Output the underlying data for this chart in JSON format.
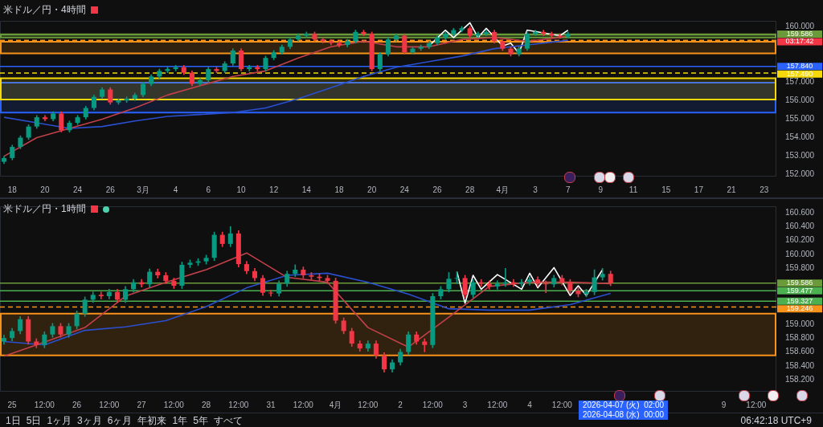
{
  "chart_data": [
    {
      "type": "candlestick",
      "title": "米ドル／円・4時間",
      "categories": [
        null,
        "18",
        null,
        null,
        null,
        "20",
        null,
        null,
        null,
        "24",
        null,
        null,
        null,
        "26",
        null,
        null,
        null,
        "3月",
        null,
        null,
        null,
        "4",
        null,
        null,
        null,
        "6",
        null,
        null,
        null,
        "10",
        null,
        null,
        null,
        "12",
        null,
        null,
        null,
        "14",
        null,
        null,
        null,
        "18",
        null,
        null,
        null,
        "20",
        null,
        null,
        null,
        "24",
        null,
        null,
        null,
        "26",
        null,
        null,
        null,
        "28",
        null,
        null,
        null,
        "4月",
        null,
        null,
        null,
        "3",
        null,
        null,
        null,
        "7",
        null,
        null,
        null,
        "9",
        null,
        null,
        null,
        "11",
        null,
        null,
        null,
        "15",
        null,
        null,
        null,
        "17",
        null,
        null,
        null,
        "21",
        null,
        null,
        null,
        "23",
        null
      ],
      "ohlc": [
        [
          152.7,
          153.0,
          152.6,
          152.9
        ],
        [
          152.9,
          153.6,
          152.8,
          153.5
        ],
        [
          153.5,
          154.1,
          153.4,
          154.0
        ],
        [
          154.0,
          154.7,
          153.9,
          154.6
        ],
        [
          154.6,
          155.2,
          154.5,
          155.1
        ],
        [
          155.1,
          155.2,
          154.9,
          155.0
        ],
        [
          155.0,
          155.4,
          154.9,
          155.3
        ],
        [
          155.3,
          155.4,
          154.3,
          154.4
        ],
        [
          154.4,
          154.9,
          154.3,
          154.8
        ],
        [
          154.8,
          155.2,
          154.7,
          155.1
        ],
        [
          155.1,
          155.7,
          155.0,
          155.6
        ],
        [
          155.6,
          156.3,
          155.5,
          156.2
        ],
        [
          156.2,
          156.7,
          156.1,
          156.6
        ],
        [
          156.6,
          156.7,
          155.8,
          155.9
        ],
        [
          155.9,
          156.1,
          155.8,
          156.0
        ],
        [
          156.0,
          156.2,
          155.9,
          156.1
        ],
        [
          156.1,
          156.4,
          156.0,
          156.3
        ],
        [
          156.3,
          157.0,
          156.2,
          156.9
        ],
        [
          156.9,
          157.4,
          156.8,
          157.3
        ],
        [
          157.3,
          157.7,
          157.2,
          157.6
        ],
        [
          157.6,
          157.8,
          157.5,
          157.7
        ],
        [
          157.7,
          157.9,
          157.6,
          157.8
        ],
        [
          157.8,
          157.9,
          157.4,
          157.5
        ],
        [
          157.5,
          157.6,
          156.8,
          156.9
        ],
        [
          156.9,
          157.2,
          156.8,
          157.1
        ],
        [
          157.1,
          157.8,
          157.0,
          157.7
        ],
        [
          157.7,
          157.8,
          157.5,
          157.6
        ],
        [
          157.6,
          158.1,
          157.5,
          158.0
        ],
        [
          158.0,
          158.8,
          157.9,
          158.7
        ],
        [
          158.7,
          158.8,
          157.6,
          157.7
        ],
        [
          157.7,
          157.9,
          157.6,
          157.8
        ],
        [
          157.8,
          157.9,
          157.6,
          157.7
        ],
        [
          157.7,
          158.4,
          157.6,
          158.3
        ],
        [
          158.3,
          158.7,
          158.2,
          158.6
        ],
        [
          158.6,
          159.0,
          158.5,
          158.9
        ],
        [
          158.9,
          159.4,
          158.8,
          159.3
        ],
        [
          159.3,
          159.6,
          159.2,
          159.5
        ],
        [
          159.5,
          159.7,
          159.4,
          159.6
        ],
        [
          159.6,
          159.7,
          159.2,
          159.3
        ],
        [
          159.3,
          159.4,
          159.1,
          159.2
        ],
        [
          159.2,
          159.3,
          159.0,
          159.1
        ],
        [
          159.1,
          159.2,
          158.9,
          159.0
        ],
        [
          159.0,
          159.3,
          158.9,
          159.2
        ],
        [
          159.2,
          159.8,
          159.1,
          159.7
        ],
        [
          159.7,
          159.8,
          159.5,
          159.6
        ],
        [
          159.6,
          159.7,
          157.6,
          157.7
        ],
        [
          157.7,
          158.6,
          157.6,
          158.5
        ],
        [
          158.5,
          159.4,
          158.4,
          159.3
        ],
        [
          159.3,
          159.6,
          159.2,
          159.5
        ],
        [
          159.5,
          159.6,
          158.5,
          158.6
        ],
        [
          158.6,
          158.9,
          158.5,
          158.8
        ],
        [
          158.8,
          159.0,
          158.7,
          158.9
        ],
        [
          158.9,
          159.2,
          158.8,
          159.1
        ],
        [
          159.1,
          159.5,
          159.0,
          159.4
        ],
        [
          159.4,
          159.7,
          159.3,
          159.6
        ],
        [
          159.6,
          159.9,
          159.5,
          159.8
        ],
        [
          159.8,
          160.0,
          159.7,
          159.9
        ],
        [
          159.9,
          160.0,
          159.4,
          159.5
        ],
        [
          159.5,
          159.7,
          159.4,
          159.6
        ],
        [
          159.6,
          159.8,
          159.5,
          159.7
        ],
        [
          159.7,
          159.8,
          159.1,
          159.2
        ],
        [
          159.2,
          159.3,
          158.7,
          158.8
        ],
        [
          158.8,
          158.9,
          158.4,
          158.5
        ],
        [
          158.5,
          158.9,
          158.4,
          158.8
        ],
        [
          158.8,
          159.7,
          158.7,
          159.6
        ],
        [
          159.6,
          159.8,
          159.5,
          159.7
        ],
        [
          159.7,
          159.8,
          159.5,
          159.6
        ],
        [
          159.6,
          159.7,
          159.4,
          159.5
        ],
        [
          159.5,
          159.6,
          159.35,
          159.45
        ],
        [
          159.45,
          159.7,
          159.4,
          159.586
        ],
        null,
        null,
        null,
        null,
        null,
        null,
        null,
        null,
        null,
        null,
        null,
        null,
        null,
        null,
        null,
        null,
        null,
        null,
        null,
        null,
        null,
        null,
        null,
        null,
        null
      ],
      "series": [
        {
          "type": "line",
          "color": "#c2404a",
          "values": [
            153.0,
            null,
            null,
            null,
            154.0,
            null,
            null,
            null,
            154.5,
            null,
            null,
            null,
            155.0,
            null,
            null,
            null,
            155.6,
            null,
            null,
            null,
            156.3,
            null,
            null,
            null,
            156.8,
            null,
            null,
            null,
            157.3,
            null,
            null,
            null,
            157.6,
            null,
            null,
            null,
            158.3,
            null,
            null,
            null,
            158.9,
            null,
            null,
            null,
            159.2,
            null,
            null,
            null,
            158.9,
            null,
            null,
            null,
            158.9,
            null,
            null,
            null,
            159.3,
            null,
            null,
            null,
            159.4,
            null,
            null,
            null,
            159.2,
            null,
            null,
            null,
            159.4,
            159.5,
            null,
            null,
            null,
            null,
            null,
            null,
            null,
            null,
            null,
            null,
            null,
            null,
            null,
            null,
            null,
            null,
            null,
            null,
            null,
            null,
            null,
            null,
            null,
            null,
            null
          ]
        },
        {
          "type": "line",
          "color": "#2a4fd0",
          "values": [
            155.1,
            null,
            null,
            null,
            154.8,
            null,
            null,
            null,
            154.5,
            null,
            null,
            null,
            154.6,
            null,
            null,
            null,
            154.9,
            null,
            null,
            null,
            155.15,
            null,
            null,
            null,
            155.25,
            null,
            null,
            null,
            155.35,
            null,
            null,
            null,
            155.6,
            null,
            null,
            null,
            156.1,
            null,
            null,
            null,
            156.7,
            null,
            null,
            null,
            157.3,
            null,
            null,
            null,
            157.8,
            null,
            null,
            null,
            158.1,
            null,
            null,
            null,
            158.4,
            null,
            null,
            null,
            158.8,
            null,
            null,
            null,
            159.0,
            null,
            null,
            null,
            159.2,
            159.25,
            null,
            null,
            null,
            null,
            null,
            null,
            null,
            null,
            null,
            null,
            null,
            null,
            null,
            null,
            null,
            null,
            null,
            null,
            null,
            null,
            null,
            null,
            null,
            null,
            null
          ]
        },
        {
          "type": "line",
          "color": "#ffffff",
          "values": [
            null,
            null,
            null,
            null,
            null,
            null,
            null,
            null,
            null,
            null,
            null,
            null,
            null,
            null,
            null,
            null,
            null,
            null,
            null,
            null,
            null,
            null,
            null,
            null,
            null,
            null,
            null,
            null,
            null,
            null,
            null,
            null,
            null,
            null,
            null,
            null,
            null,
            null,
            null,
            null,
            null,
            null,
            null,
            null,
            null,
            null,
            null,
            null,
            null,
            null,
            null,
            null,
            158.95,
            null,
            159.8,
            159.4,
            null,
            160.2,
            159.4,
            159.9,
            null,
            158.95,
            159.1,
            158.55,
            159.8,
            null,
            null,
            null,
            159.5,
            159.8,
            null,
            null,
            null,
            null,
            null,
            null,
            null,
            null,
            null,
            null,
            null,
            null,
            null,
            null,
            null,
            null,
            null,
            null,
            null,
            null,
            null,
            null,
            null,
            null,
            null
          ]
        }
      ],
      "ylim": [
        151.9,
        160.3
      ],
      "yticks": [
        {
          "value": 152,
          "label": "152.000"
        },
        {
          "value": 153,
          "label": "153.000"
        },
        {
          "value": 154,
          "label": "154.000"
        },
        {
          "value": 155,
          "label": "155.000"
        },
        {
          "value": 156,
          "label": "156.000"
        },
        {
          "value": 157,
          "label": "157.000"
        },
        {
          "value": 160,
          "label": "160.000"
        }
      ],
      "ref_lines": [
        {
          "axis": "y",
          "value": 159.586,
          "label": "159.586",
          "color": "#6a9a3a",
          "line_style": "solid"
        },
        {
          "axis": "y",
          "value": 159.246,
          "color": "#f7931a",
          "line_style": "dashed"
        },
        {
          "axis": "y",
          "value": 157.84,
          "label": "157.840",
          "color": "#2962ff",
          "line_style": "solid"
        },
        {
          "axis": "y",
          "value": 157.49,
          "label": "157.490",
          "color": "#f5d90a",
          "line_style": "dashed"
        }
      ],
      "bands": [
        {
          "axis": "y",
          "from": 155.35,
          "to": 156.97,
          "color": "#2962ff"
        },
        {
          "axis": "y",
          "from": 156.06,
          "to": 157.2,
          "color": "#f5d90a"
        },
        {
          "axis": "y",
          "from": 158.55,
          "to": 159.17,
          "color": "#f7931a"
        },
        {
          "axis": "y",
          "from": 159.4,
          "to": 159.55,
          "color": "#6a9a3a"
        }
      ],
      "annotations": [
        "03:17:42"
      ]
    },
    {
      "type": "candlestick",
      "title": "米ドル／円・1時間",
      "categories": [
        null,
        "25",
        null,
        null,
        null,
        "12:00",
        null,
        null,
        null,
        "26",
        null,
        null,
        null,
        "12:00",
        null,
        null,
        null,
        "27",
        null,
        null,
        null,
        "12:00",
        null,
        null,
        null,
        "28",
        null,
        null,
        null,
        "12:00",
        null,
        null,
        null,
        "31",
        null,
        null,
        null,
        "12:00",
        null,
        null,
        null,
        "4月",
        null,
        null,
        null,
        "12:00",
        null,
        null,
        null,
        "2",
        null,
        null,
        null,
        "12:00",
        null,
        null,
        null,
        "3",
        null,
        null,
        null,
        "12:00",
        null,
        null,
        null,
        "4",
        null,
        null,
        null,
        "12:00",
        null,
        null,
        null,
        null,
        null,
        null,
        null,
        null,
        null,
        null,
        null,
        null,
        null,
        null,
        null,
        null,
        null,
        null,
        null,
        "9",
        null,
        null,
        null,
        "12:00",
        null,
        null
      ],
      "ohlc": [
        [
          158.75,
          158.84,
          158.71,
          158.8
        ],
        [
          158.8,
          158.94,
          158.76,
          158.9
        ],
        [
          158.9,
          159.11,
          158.86,
          159.07
        ],
        [
          159.07,
          159.11,
          158.71,
          158.75
        ],
        [
          158.75,
          158.79,
          158.66,
          158.7
        ],
        [
          158.7,
          158.89,
          158.66,
          158.85
        ],
        [
          158.85,
          159.01,
          158.81,
          158.97
        ],
        [
          158.97,
          159.01,
          158.81,
          158.85
        ],
        [
          158.85,
          159.01,
          158.81,
          158.97
        ],
        [
          158.97,
          159.19,
          158.93,
          159.15
        ],
        [
          159.15,
          159.39,
          159.11,
          159.35
        ],
        [
          159.35,
          159.46,
          159.31,
          159.42
        ],
        [
          159.42,
          159.46,
          159.36,
          159.4
        ],
        [
          159.4,
          159.5,
          159.36,
          159.46
        ],
        [
          159.46,
          159.5,
          159.31,
          159.35
        ],
        [
          159.35,
          159.54,
          159.31,
          159.5
        ],
        [
          159.5,
          159.64,
          159.46,
          159.6
        ],
        [
          159.6,
          159.64,
          159.53,
          159.57
        ],
        [
          159.57,
          159.79,
          159.53,
          159.75
        ],
        [
          159.75,
          159.79,
          159.66,
          159.7
        ],
        [
          159.7,
          159.74,
          159.58,
          159.62
        ],
        [
          159.62,
          159.66,
          159.51,
          159.55
        ],
        [
          159.55,
          159.89,
          159.51,
          159.85
        ],
        [
          159.85,
          159.92,
          159.81,
          159.88
        ],
        [
          159.88,
          159.94,
          159.84,
          159.9
        ],
        [
          159.9,
          159.99,
          159.86,
          159.95
        ],
        [
          159.95,
          160.32,
          159.91,
          160.28
        ],
        [
          160.28,
          160.32,
          160.11,
          160.15
        ],
        [
          160.15,
          160.4,
          160.11,
          160.3
        ],
        [
          160.3,
          160.34,
          159.82,
          159.86
        ],
        [
          159.86,
          159.9,
          159.72,
          159.76
        ],
        [
          159.76,
          159.8,
          159.62,
          159.66
        ],
        [
          159.66,
          159.7,
          159.41,
          159.45
        ],
        [
          159.45,
          159.49,
          159.4,
          159.44
        ],
        [
          159.44,
          159.62,
          159.4,
          159.58
        ],
        [
          159.58,
          159.76,
          159.54,
          159.72
        ],
        [
          159.72,
          159.85,
          159.68,
          159.78
        ],
        [
          159.78,
          159.82,
          159.66,
          159.7
        ],
        [
          159.7,
          159.74,
          159.64,
          159.68
        ],
        [
          159.68,
          159.72,
          159.62,
          159.66
        ],
        [
          159.66,
          159.7,
          159.58,
          159.62
        ],
        [
          159.62,
          159.66,
          159.01,
          159.05
        ],
        [
          159.05,
          159.09,
          158.86,
          158.9
        ],
        [
          158.9,
          158.94,
          158.68,
          158.72
        ],
        [
          158.72,
          158.76,
          158.61,
          158.65
        ],
        [
          158.65,
          158.76,
          158.61,
          158.72
        ],
        [
          158.72,
          158.76,
          158.51,
          158.55
        ],
        [
          158.55,
          158.59,
          158.31,
          158.35
        ],
        [
          158.35,
          158.49,
          158.31,
          158.45
        ],
        [
          158.45,
          158.64,
          158.41,
          158.6
        ],
        [
          158.6,
          158.89,
          158.56,
          158.85
        ],
        [
          158.85,
          158.89,
          158.71,
          158.75
        ],
        [
          158.75,
          158.79,
          158.6,
          158.7
        ],
        [
          158.7,
          159.44,
          158.66,
          159.4
        ],
        [
          159.4,
          159.54,
          159.36,
          159.5
        ],
        [
          159.5,
          159.74,
          159.46,
          159.65
        ],
        [
          159.65,
          159.75,
          159.58,
          159.66
        ],
        [
          159.66,
          159.7,
          159.38,
          159.42
        ],
        [
          159.42,
          159.64,
          159.38,
          159.6
        ],
        [
          159.6,
          159.64,
          159.54,
          159.58
        ],
        [
          159.58,
          159.62,
          159.5,
          159.54
        ],
        [
          159.54,
          159.62,
          159.5,
          159.58
        ],
        [
          159.58,
          159.8,
          159.54,
          159.6
        ],
        [
          159.6,
          159.64,
          159.54,
          159.58
        ],
        [
          159.58,
          159.64,
          159.54,
          159.6
        ],
        [
          159.6,
          159.68,
          159.56,
          159.64
        ],
        [
          159.64,
          159.68,
          159.54,
          159.58
        ],
        [
          159.58,
          159.62,
          159.45,
          159.57
        ],
        [
          159.57,
          159.7,
          159.53,
          159.66
        ],
        [
          159.66,
          159.7,
          159.56,
          159.6
        ],
        [
          159.6,
          159.64,
          159.44,
          159.48
        ],
        [
          159.48,
          159.52,
          159.39,
          159.43
        ],
        [
          159.43,
          159.5,
          159.39,
          159.46
        ],
        [
          159.46,
          159.78,
          159.42,
          159.67
        ],
        [
          159.67,
          159.8,
          159.63,
          159.72
        ],
        [
          159.72,
          159.76,
          159.55,
          159.586
        ],
        null,
        null,
        null,
        null,
        null,
        null,
        null,
        null,
        null,
        null,
        null,
        null,
        null,
        null,
        null,
        null,
        null,
        null,
        null,
        null
      ],
      "series": [
        {
          "type": "line",
          "color": "#c2404a",
          "values": [
            158.54,
            null,
            null,
            null,
            null,
            158.74,
            null,
            null,
            null,
            null,
            158.95,
            null,
            null,
            null,
            null,
            159.4,
            null,
            null,
            null,
            null,
            159.6,
            null,
            null,
            null,
            null,
            159.78,
            null,
            null,
            null,
            null,
            160.02,
            null,
            null,
            null,
            null,
            159.67,
            null,
            null,
            null,
            null,
            159.6,
            null,
            null,
            null,
            null,
            158.95,
            null,
            null,
            null,
            null,
            158.67,
            null,
            null,
            null,
            null,
            159.1,
            null,
            null,
            null,
            null,
            159.54,
            null,
            null,
            null,
            null,
            159.6,
            null,
            null,
            null,
            null,
            159.6,
            null,
            null,
            null,
            null,
            159.58,
            null,
            null,
            null,
            null,
            null,
            null,
            null,
            null,
            null,
            null,
            null,
            null,
            null,
            null,
            null,
            null,
            null,
            null,
            null,
            null
          ]
        },
        {
          "type": "line",
          "color": "#2a4fd0",
          "values": [
            158.75,
            null,
            null,
            null,
            null,
            158.7,
            null,
            null,
            null,
            null,
            158.91,
            null,
            null,
            null,
            null,
            158.96,
            null,
            null,
            null,
            null,
            159.05,
            null,
            null,
            null,
            null,
            159.25,
            null,
            null,
            null,
            null,
            159.52,
            null,
            null,
            null,
            null,
            159.7,
            null,
            null,
            null,
            null,
            159.73,
            null,
            null,
            null,
            null,
            159.6,
            null,
            null,
            null,
            null,
            159.43,
            null,
            null,
            null,
            null,
            159.22,
            null,
            null,
            null,
            null,
            159.2,
            null,
            null,
            null,
            null,
            159.2,
            null,
            null,
            null,
            null,
            159.28,
            null,
            null,
            null,
            null,
            159.44,
            null,
            null,
            null,
            null,
            null,
            null,
            null,
            null,
            null,
            null,
            null,
            null,
            null,
            null,
            null,
            null,
            null,
            null,
            null,
            null
          ]
        },
        {
          "type": "line",
          "color": "#ffffff",
          "values": [
            null,
            null,
            null,
            null,
            null,
            null,
            null,
            null,
            null,
            null,
            null,
            null,
            null,
            null,
            null,
            null,
            null,
            null,
            null,
            null,
            null,
            null,
            null,
            null,
            null,
            null,
            null,
            null,
            null,
            null,
            null,
            null,
            null,
            null,
            null,
            null,
            null,
            null,
            null,
            null,
            null,
            null,
            null,
            null,
            null,
            null,
            null,
            null,
            null,
            null,
            null,
            null,
            null,
            null,
            null,
            null,
            159.75,
            159.3,
            159.7,
            159.5,
            null,
            159.71,
            null,
            null,
            159.5,
            159.73,
            159.52,
            null,
            159.81,
            null,
            159.41,
            159.55,
            159.41,
            null,
            159.78,
            null,
            null,
            null,
            null,
            null,
            null,
            null,
            null,
            null,
            null,
            null,
            null,
            null,
            null,
            null,
            null,
            null,
            null,
            null,
            null,
            null
          ]
        }
      ],
      "ylim": [
        158.03,
        160.69
      ],
      "yticks": [
        {
          "value": 158.2,
          "label": "158.200"
        },
        {
          "value": 158.4,
          "label": "158.400"
        },
        {
          "value": 158.6,
          "label": "158.600"
        },
        {
          "value": 158.8,
          "label": "158.800"
        },
        {
          "value": 159,
          "label": "159.000"
        },
        {
          "value": 159.8,
          "label": "159.800"
        },
        {
          "value": 160,
          "label": "160.000"
        },
        {
          "value": 160.2,
          "label": "160.200"
        },
        {
          "value": 160.4,
          "label": "160.400"
        },
        {
          "value": 160.6,
          "label": "160.600"
        }
      ],
      "ref_lines": [
        {
          "axis": "y",
          "value": 159.586,
          "label": "159.586",
          "color": "#6a9a3a",
          "line_style": "solid"
        },
        {
          "axis": "y",
          "value": 159.477,
          "label": "159.477",
          "color": "#4caf50",
          "line_style": "solid"
        },
        {
          "axis": "y",
          "value": 159.327,
          "label": "159.327",
          "color": "#4caf50",
          "line_style": "solid"
        },
        {
          "axis": "y",
          "value": 159.246,
          "label": "159.246",
          "color": "#f7931a",
          "line_style": "dashed"
        }
      ],
      "bands": [
        {
          "axis": "y",
          "from": 158.55,
          "to": 159.15,
          "color": "#f7931a"
        }
      ],
      "annotations": [
        "2026-04-07 (火)  02:00",
        "2026-04-08 (水)  00:00",
        "1日",
        "5日",
        "1ヶ月",
        "3ヶ月",
        "6ヶ月",
        "年初来",
        "1年",
        "5年",
        "すべて",
        "06:42:18 UTC+9"
      ]
    }
  ]
}
